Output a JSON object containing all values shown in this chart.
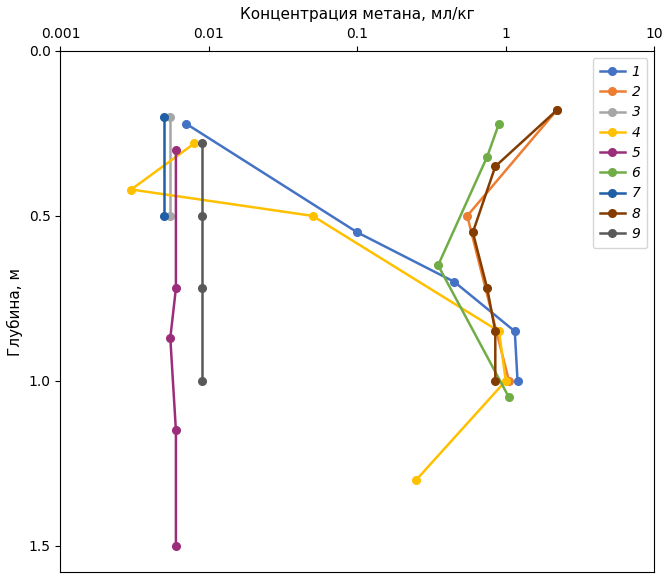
{
  "title": "Концентрация метана, мл/кг",
  "ylabel": "Глубина, м",
  "xlim": [
    0.001,
    10
  ],
  "ylim": [
    1.58,
    0.0
  ],
  "series": [
    {
      "label": "1",
      "color": "#4472C4",
      "x": [
        0.007,
        0.1,
        0.45,
        1.15,
        1.2
      ],
      "y": [
        0.22,
        0.55,
        0.7,
        0.85,
        1.0
      ]
    },
    {
      "label": "2",
      "color": "#ED7D31",
      "x": [
        2.2,
        0.55,
        1.05
      ],
      "y": [
        0.18,
        0.5,
        1.0
      ]
    },
    {
      "label": "3",
      "color": "#A6A6A6",
      "x": [
        0.0055,
        0.0055
      ],
      "y": [
        0.2,
        0.5
      ]
    },
    {
      "label": "4",
      "color": "#FFC000",
      "x": [
        0.008,
        0.003,
        0.05,
        0.9,
        1.0,
        0.25
      ],
      "y": [
        0.28,
        0.42,
        0.5,
        0.85,
        1.0,
        1.3
      ]
    },
    {
      "label": "5",
      "color": "#9B2D7A",
      "x": [
        0.006,
        0.006,
        0.0055,
        0.006,
        0.006
      ],
      "y": [
        0.3,
        0.72,
        0.87,
        1.15,
        1.5
      ]
    },
    {
      "label": "6",
      "color": "#70AD47",
      "x": [
        0.9,
        0.75,
        0.35,
        1.05
      ],
      "y": [
        0.22,
        0.32,
        0.65,
        1.05
      ]
    },
    {
      "label": "7",
      "color": "#1F5FA6",
      "x": [
        0.005,
        0.005
      ],
      "y": [
        0.2,
        0.5
      ]
    },
    {
      "label": "8",
      "color": "#843C00",
      "x": [
        2.2,
        0.85,
        0.6,
        0.75,
        0.85,
        0.85
      ],
      "y": [
        0.18,
        0.35,
        0.55,
        0.72,
        0.85,
        1.0
      ]
    },
    {
      "label": "9",
      "color": "#595959",
      "x": [
        0.009,
        0.009,
        0.009,
        0.009
      ],
      "y": [
        0.28,
        0.5,
        0.72,
        1.0
      ]
    }
  ],
  "yticks": [
    0.0,
    0.5,
    1.0,
    1.5
  ],
  "xticks": [
    0.001,
    0.01,
    0.1,
    1,
    10
  ],
  "xtick_labels": [
    "0.001",
    "0.01",
    "0.1",
    "1",
    "10"
  ],
  "background_color": "#ffffff",
  "title_fontsize": 11,
  "ylabel_fontsize": 11,
  "tick_fontsize": 10,
  "legend_fontsize": 10,
  "linewidth": 1.8,
  "markersize": 5.5
}
